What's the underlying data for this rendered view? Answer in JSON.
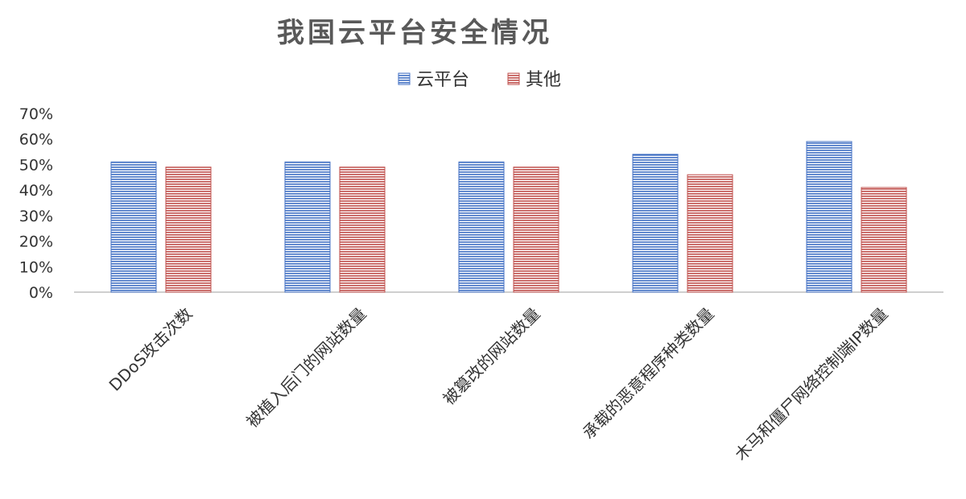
{
  "chart_data": {
    "type": "bar",
    "title": "我国云平台安全情况",
    "categories": [
      "DDoS攻击次数",
      "被植入后门的网站数量",
      "被篡改的网站数量",
      "承载的恶意程序种类数量",
      "木马和僵尸网络控制端IP数量"
    ],
    "series": [
      {
        "name": "云平台",
        "values": [
          0.51,
          0.51,
          0.51,
          0.54,
          0.59
        ],
        "color": "#4472C4"
      },
      {
        "name": "其他",
        "values": [
          0.49,
          0.49,
          0.49,
          0.46,
          0.41
        ],
        "color": "#C0504D"
      }
    ],
    "ylim": [
      0,
      0.7
    ],
    "yticks": [
      "0%",
      "10%",
      "20%",
      "30%",
      "40%",
      "50%",
      "60%",
      "70%"
    ],
    "grid": false,
    "legend_position": "top"
  }
}
